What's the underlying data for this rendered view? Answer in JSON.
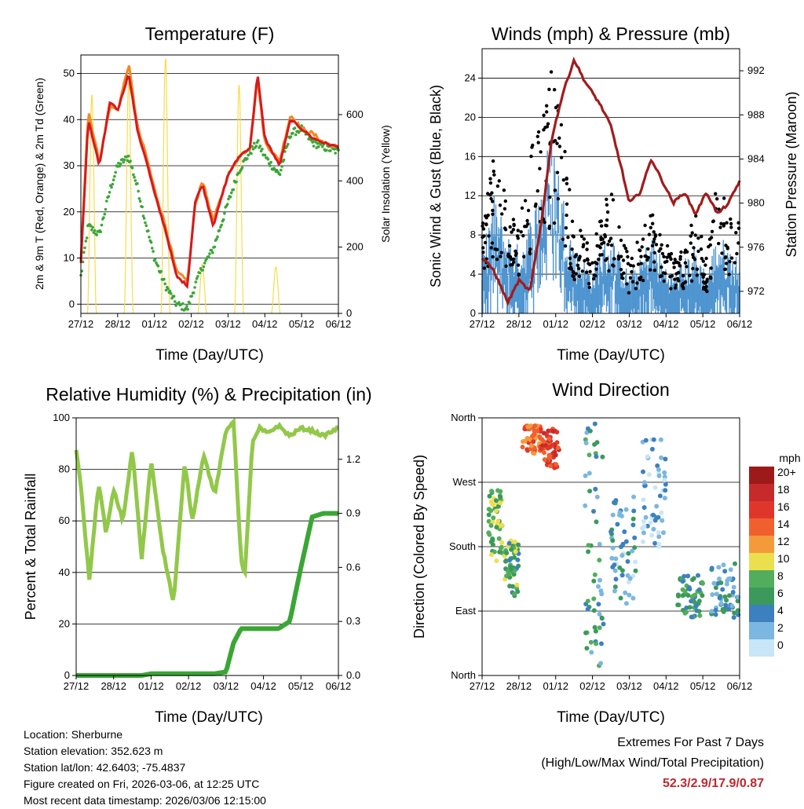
{
  "x_ticks": [
    "27/12",
    "28/12",
    "01/12",
    "02/12",
    "03/12",
    "04/12",
    "05/12",
    "06/12"
  ],
  "panels": {
    "temperature": {
      "title": "Temperature (F)",
      "xlabel": "Time (Day/UTC)",
      "ylabel_left": "2m & 9m T (Red, Orange) & 2m Td (Green)",
      "ylabel_right": "Solar Insolation (Yellow)",
      "yticks_left": [
        "0",
        "10",
        "20",
        "30",
        "40",
        "50"
      ],
      "yticks_right": [
        "0",
        "200",
        "400",
        "600"
      ]
    },
    "winds": {
      "title": "Winds (mph) & Pressure (mb)",
      "xlabel": "Time (Day/UTC)",
      "ylabel_left": "Sonic Wind & Gust (Blue, Black)",
      "ylabel_right": "Station Pressure (Maroon)",
      "yticks_left": [
        "0",
        "4",
        "8",
        "12",
        "16",
        "20",
        "24"
      ],
      "yticks_right": [
        "972",
        "976",
        "980",
        "984",
        "988",
        "992"
      ]
    },
    "humidity": {
      "title": "Relative Humidity (%) & Precipitation (in)",
      "xlabel": "Time (Day/UTC)",
      "ylabel_left": "Percent & Total Rainfall",
      "yticks_left": [
        "0",
        "20",
        "40",
        "60",
        "80",
        "100"
      ],
      "yticks_right": [
        "0.0",
        "0.3",
        "0.6",
        "0.9",
        "1.2"
      ]
    },
    "direction": {
      "title": "Wind Direction",
      "xlabel": "Time (Day/UTC)",
      "ylabel_left": "Direction (Colored By Speed)",
      "yticks_left": [
        "North",
        "East",
        "South",
        "West",
        "North"
      ],
      "legend_title": "mph",
      "legend_labels": [
        "20+",
        "18",
        "16",
        "14",
        "12",
        "10",
        "8",
        "6",
        "4",
        "2",
        "0"
      ]
    }
  },
  "colors": {
    "temp_2m": "#d7191c",
    "temp_9m": "#f08a24",
    "dewpoint": "#3aa635",
    "solar": "#f7dc4a",
    "wind": "#4f95d0",
    "gust": "#000000",
    "pressure": "#a01c1c",
    "rh": "#92c84a",
    "precip": "#3aa635",
    "legend_scale": [
      "#9e1a1a",
      "#c62a2a",
      "#e0352b",
      "#f0602e",
      "#f59a3b",
      "#ecdf4e",
      "#52ae5c",
      "#3b9a5b",
      "#3d80c0",
      "#7bb7e0",
      "#c8e6f7"
    ]
  },
  "chart_data": [
    {
      "type": "line",
      "title": "Temperature (F)",
      "xlabel": "Time (Day/UTC)",
      "ylabel": "2m & 9m T (Red, Orange) & 2m Td (Green)",
      "y2label": "Solar Insolation (Yellow)",
      "ylim": [
        -2,
        54
      ],
      "y2lim": [
        0,
        780
      ],
      "x": [
        0,
        0.2,
        0.5,
        0.8,
        1.0,
        1.3,
        1.55,
        1.75,
        2.0,
        2.3,
        2.6,
        2.9,
        3.1,
        3.3,
        3.6,
        4.0,
        4.3,
        4.6,
        4.8,
        5.0,
        5.4,
        5.7,
        6.0,
        6.3,
        6.6,
        7.0
      ],
      "series": [
        {
          "name": "2m T",
          "values": [
            9,
            40,
            30,
            44,
            42,
            50,
            37,
            32,
            24,
            16,
            6,
            4,
            22,
            26,
            17,
            28,
            32,
            34,
            50,
            36,
            30,
            40,
            38,
            36,
            35,
            34
          ]
        },
        {
          "name": "9m T",
          "values": [
            10,
            42,
            31,
            43,
            42,
            52,
            38,
            33,
            25,
            17,
            7,
            5,
            21,
            27,
            18,
            28,
            32,
            34,
            49,
            35,
            31,
            41,
            38,
            37,
            35,
            34
          ]
        },
        {
          "name": "2m Td",
          "values": [
            6,
            17,
            15,
            25,
            30,
            32,
            25,
            18,
            10,
            4,
            0,
            -1,
            4,
            8,
            12,
            22,
            29,
            33,
            35,
            32,
            28,
            37,
            38,
            35,
            34,
            33
          ]
        }
      ],
      "solar_peaks": [
        {
          "day": 0.3,
          "value": 660
        },
        {
          "day": 1.3,
          "value": 700
        },
        {
          "day": 2.3,
          "value": 770
        },
        {
          "day": 3.3,
          "value": 150
        },
        {
          "day": 4.3,
          "value": 690
        },
        {
          "day": 5.3,
          "value": 140
        }
      ]
    },
    {
      "type": "line",
      "title": "Winds (mph) & Pressure (mb)",
      "xlabel": "Time (Day/UTC)",
      "ylabel": "Sonic Wind & Gust (Blue, Black)",
      "y2label": "Station Pressure (Maroon)",
      "ylim": [
        0,
        27
      ],
      "y2lim": [
        970,
        994
      ],
      "x": [
        0,
        0.3,
        0.7,
        1.0,
        1.3,
        1.6,
        1.9,
        2.2,
        2.5,
        2.8,
        3.0,
        3.2,
        3.5,
        3.8,
        4.0,
        4.3,
        4.6,
        4.9,
        5.2,
        5.5,
        5.8,
        6.1,
        6.4,
        6.7,
        7.0
      ],
      "series": [
        {
          "name": "Wind envelope",
          "values": [
            4,
            9,
            6,
            5,
            7,
            10,
            14,
            9,
            5,
            4,
            3,
            5,
            6,
            4,
            3,
            4,
            6,
            4,
            3,
            4,
            5,
            3,
            6,
            5,
            4
          ]
        },
        {
          "name": "Gust envelope",
          "values": [
            8,
            14,
            10,
            8,
            14,
            18,
            22,
            16,
            8,
            7,
            6,
            9,
            11,
            7,
            5,
            7,
            10,
            7,
            5,
            6,
            9,
            5,
            12,
            10,
            8
          ]
        },
        {
          "name": "Pressure",
          "values": [
            975,
            974,
            971,
            973,
            972,
            978,
            986,
            990,
            993,
            991,
            990,
            989,
            987,
            983,
            980,
            981,
            984,
            982,
            980,
            981,
            979,
            981,
            979,
            980,
            982
          ]
        }
      ]
    },
    {
      "type": "line",
      "title": "Relative Humidity (%) & Precipitation (in)",
      "xlabel": "Time (Day/UTC)",
      "ylabel": "Percent & Total Rainfall",
      "ylim": [
        0,
        100
      ],
      "y2lim": [
        0,
        1.43
      ],
      "x": [
        0,
        0.15,
        0.35,
        0.6,
        0.8,
        1.0,
        1.25,
        1.5,
        1.75,
        2.0,
        2.3,
        2.6,
        2.9,
        3.1,
        3.4,
        3.7,
        4.0,
        4.2,
        4.4,
        4.5,
        4.7,
        4.9,
        5.1,
        5.4,
        5.7,
        6.0,
        6.3,
        6.6,
        7.0
      ],
      "series": [
        {
          "name": "Relative Humidity",
          "values": [
            88,
            70,
            37,
            75,
            55,
            72,
            60,
            88,
            45,
            84,
            50,
            28,
            83,
            60,
            86,
            70,
            95,
            99,
            45,
            38,
            90,
            96,
            94,
            97,
            93,
            96,
            95,
            93,
            96
          ]
        },
        {
          "name": "Total Precipitation",
          "values": [
            0.0,
            0.0,
            0.0,
            0.0,
            0.0,
            0.0,
            0.0,
            0.0,
            0.0,
            0.01,
            0.01,
            0.01,
            0.01,
            0.01,
            0.01,
            0.01,
            0.02,
            0.18,
            0.26,
            0.26,
            0.26,
            0.26,
            0.26,
            0.26,
            0.3,
            0.6,
            0.88,
            0.9,
            0.9
          ]
        }
      ]
    },
    {
      "type": "scatter",
      "title": "Wind Direction",
      "xlabel": "Time (Day/UTC)",
      "ylabel": "Direction (Colored By Speed)",
      "ylim": [
        0,
        360
      ],
      "y_tick_values": [
        0,
        90,
        180,
        270,
        360
      ],
      "color_scale_mph": [
        0,
        2,
        4,
        6,
        8,
        10,
        12,
        14,
        16,
        18,
        20
      ],
      "clusters": [
        {
          "day_range": [
            0.15,
            0.55
          ],
          "dir_range": [
            160,
            260
          ],
          "speed": 8
        },
        {
          "day_range": [
            0.6,
            1.0
          ],
          "dir_range": [
            110,
            190
          ],
          "speed": 7
        },
        {
          "day_range": [
            1.1,
            1.6
          ],
          "dir_range": [
            310,
            350
          ],
          "speed": 14
        },
        {
          "day_range": [
            1.6,
            2.1
          ],
          "dir_range": [
            290,
            345
          ],
          "speed": 16
        },
        {
          "day_range": [
            2.8,
            3.3
          ],
          "dir_range": [
            0,
            360
          ],
          "speed": 5
        },
        {
          "day_range": [
            3.5,
            4.2
          ],
          "dir_range": [
            100,
            250
          ],
          "speed": 3
        },
        {
          "day_range": [
            4.3,
            5.0
          ],
          "dir_range": [
            180,
            330
          ],
          "speed": 2
        },
        {
          "day_range": [
            5.3,
            6.0
          ],
          "dir_range": [
            80,
            140
          ],
          "speed": 6
        },
        {
          "day_range": [
            6.2,
            7.0
          ],
          "dir_range": [
            80,
            160
          ],
          "speed": 4
        }
      ]
    }
  ],
  "footer": {
    "location": "Location: Sherburne",
    "elevation": "Station elevation: 352.623 m",
    "latlon": "Station lat/lon: 42.6403; -75.4837",
    "created": "Figure created on Fri, 2026-03-06, at 12:25 UTC",
    "recent": "Most recent data timestamp: 2026/03/06 12:15:00"
  },
  "extremes": {
    "title": "Extremes For Past 7 Days",
    "subtitle": "(High/Low/Max Wind/Total Precipitation)",
    "values": "52.3/2.9/17.9/0.87"
  }
}
